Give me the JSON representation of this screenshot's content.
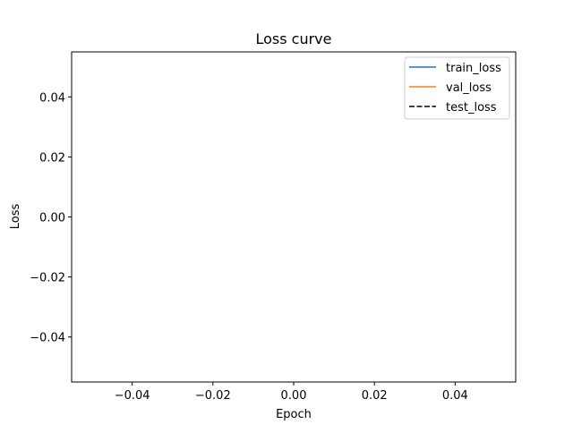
{
  "chart_data": {
    "type": "line",
    "title": "Loss curve",
    "xlabel": "Epoch",
    "ylabel": "Loss",
    "xlim": [
      -0.055,
      0.055
    ],
    "ylim": [
      -0.055,
      0.055
    ],
    "xticks": [
      -0.04,
      -0.02,
      0.0,
      0.02,
      0.04
    ],
    "xtick_labels": [
      "−0.04",
      "−0.02",
      "0.00",
      "0.02",
      "0.04"
    ],
    "yticks": [
      -0.04,
      -0.02,
      0.0,
      0.02,
      0.04
    ],
    "ytick_labels": [
      "−0.04",
      "−0.02",
      "0.00",
      "0.02",
      "0.04"
    ],
    "grid": false,
    "legend_position": "top-right",
    "series": [
      {
        "name": "train_loss",
        "x": [],
        "values": [],
        "color": "#1f77b4",
        "dash": "solid"
      },
      {
        "name": "val_loss",
        "x": [],
        "values": [],
        "color": "#ff7f0e",
        "dash": "solid"
      },
      {
        "name": "test_loss",
        "x": [],
        "values": [],
        "color": "#000000",
        "dash": "dashed"
      }
    ]
  }
}
